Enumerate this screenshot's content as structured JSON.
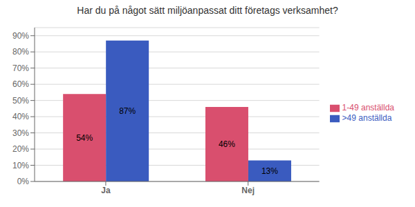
{
  "chart_data": {
    "type": "bar",
    "title": "Har du på något sätt miljöanpassat ditt företags verksamhet?",
    "categories": [
      "Ja",
      "Nej"
    ],
    "series": [
      {
        "name": "1-49 anställda",
        "color": "#d94f6e",
        "values": [
          54,
          46
        ],
        "value_labels": [
          "54%",
          "46%"
        ]
      },
      {
        "name": ">49 anställda",
        "color": "#3a5bbf",
        "values": [
          87,
          13
        ],
        "value_labels": [
          "87%",
          "13%"
        ]
      }
    ],
    "ylim": [
      0,
      95
    ],
    "yticks": [
      {
        "value": 0,
        "label": "0%"
      },
      {
        "value": 10,
        "label": "10%"
      },
      {
        "value": 20,
        "label": "20%"
      },
      {
        "value": 30,
        "label": "30%"
      },
      {
        "value": 40,
        "label": "40%"
      },
      {
        "value": 50,
        "label": "50%"
      },
      {
        "value": 60,
        "label": "60%"
      },
      {
        "value": 70,
        "label": "70%"
      },
      {
        "value": 80,
        "label": "80%"
      },
      {
        "value": 90,
        "label": "90%"
      }
    ],
    "grid": true,
    "legend": "right",
    "data_labels": true
  }
}
